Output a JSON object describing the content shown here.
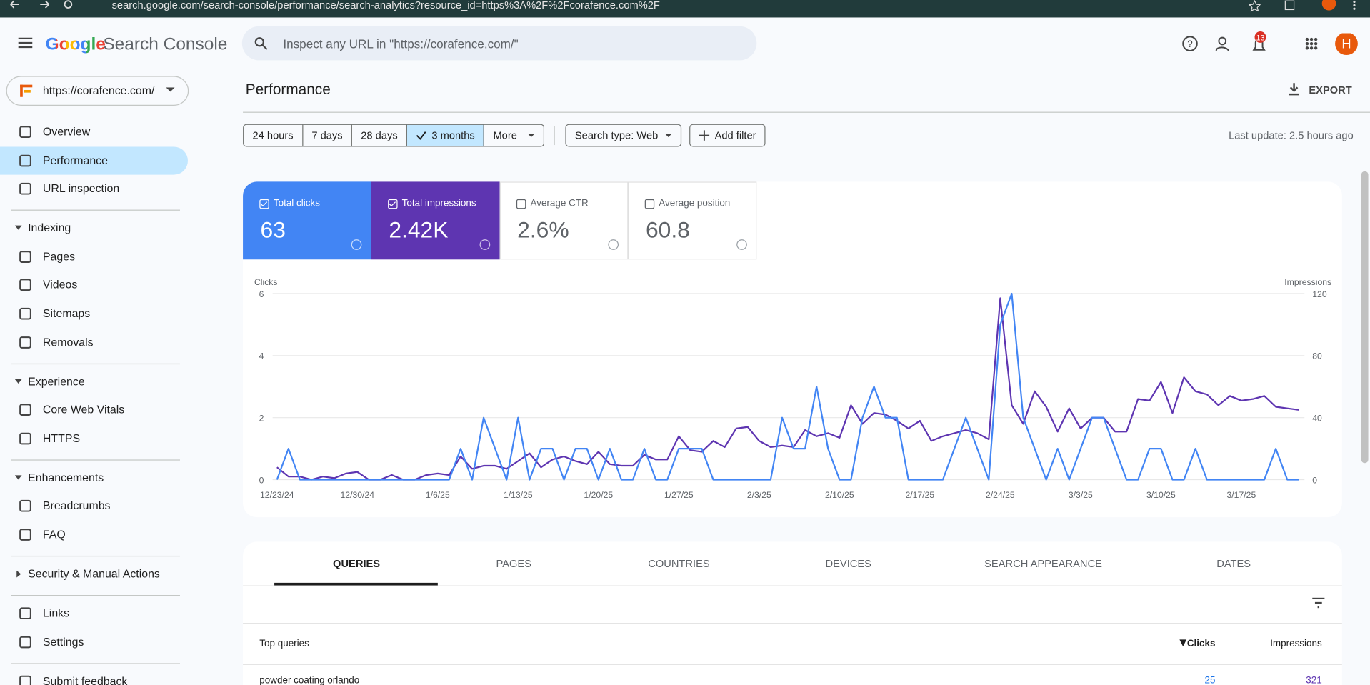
{
  "browser": {
    "url": "search.google.com/search-console/performance/search-analytics?resource_id=https%3A%2F%2Fcorafence.com%2F"
  },
  "header": {
    "logo": "Google",
    "product": "Search Console",
    "search_placeholder": "Inspect any URL in \"https://corafence.com/\"",
    "notifications": "13",
    "avatar": "H"
  },
  "sidebar": {
    "property": "https://corafence.com/",
    "top": [
      "Overview",
      "Performance",
      "URL inspection"
    ],
    "sections": [
      {
        "title": "Indexing",
        "items": [
          "Pages",
          "Videos",
          "Sitemaps",
          "Removals"
        ]
      },
      {
        "title": "Experience",
        "items": [
          "Core Web Vitals",
          "HTTPS"
        ]
      },
      {
        "title": "Enhancements",
        "items": [
          "Breadcrumbs",
          "FAQ"
        ]
      },
      {
        "title": "Security & Manual Actions",
        "items": []
      }
    ],
    "bottom": [
      "Links",
      "Settings"
    ],
    "feedback": "Submit feedback"
  },
  "main": {
    "title": "Performance",
    "export": "EXPORT",
    "date_filters": [
      "24 hours",
      "7 days",
      "28 days",
      "3 months",
      "More"
    ],
    "search_type": "Search type: Web",
    "add_filter": "Add filter",
    "last_update": "Last update: 2.5 hours ago",
    "metrics": [
      {
        "label": "Total clicks",
        "value": "63"
      },
      {
        "label": "Total impressions",
        "value": "2.42K"
      },
      {
        "label": "Average CTR",
        "value": "2.6%"
      },
      {
        "label": "Average position",
        "value": "60.8"
      }
    ]
  },
  "chart_data": {
    "type": "line",
    "ylabel": "Clicks",
    "y2label": "Impressions",
    "ylim": [
      0,
      6
    ],
    "yticks": [
      0,
      2,
      4,
      6
    ],
    "y2lim": [
      0,
      120
    ],
    "y2ticks": [
      0,
      40,
      80,
      120
    ],
    "grid": true,
    "categories": [
      "12/23/24",
      null,
      null,
      null,
      null,
      null,
      null,
      "12/30/24",
      null,
      null,
      null,
      null,
      null,
      null,
      "1/6/25",
      null,
      null,
      null,
      null,
      null,
      null,
      "1/13/25",
      null,
      null,
      null,
      null,
      null,
      null,
      "1/20/25",
      null,
      null,
      null,
      null,
      null,
      null,
      "1/27/25",
      null,
      null,
      null,
      null,
      null,
      null,
      "2/3/25",
      null,
      null,
      null,
      null,
      null,
      null,
      "2/10/25",
      null,
      null,
      null,
      null,
      null,
      null,
      "2/17/25",
      null,
      null,
      null,
      null,
      null,
      null,
      "2/24/25",
      null,
      null,
      null,
      null,
      null,
      null,
      "3/3/25",
      null,
      null,
      null,
      null,
      null,
      null,
      "3/10/25",
      null,
      null,
      null,
      null,
      null,
      null,
      "3/17/25",
      null,
      null,
      null,
      null,
      null
    ],
    "series": [
      {
        "color": "#4285f4",
        "values": [
          0,
          1,
          0,
          0,
          0,
          0,
          0,
          0,
          0,
          0,
          0,
          0,
          0,
          0,
          0,
          0,
          1,
          0,
          2,
          1,
          0,
          2,
          0,
          1,
          1,
          0,
          1,
          1,
          0,
          1,
          0,
          0,
          1,
          0,
          0,
          1,
          1,
          1,
          0,
          0,
          0,
          0,
          0,
          0,
          2,
          1,
          1,
          3,
          1,
          0,
          0,
          2,
          3,
          2,
          2,
          0,
          0,
          0,
          0,
          1,
          2,
          1,
          0,
          5,
          6,
          2,
          1,
          0,
          1,
          0,
          1,
          2,
          2,
          1,
          0,
          0,
          1,
          1,
          0,
          0,
          1,
          0,
          0,
          0,
          0,
          0,
          0,
          1,
          0,
          0
        ]
      },
      {
        "color": "#5e35b1",
        "axis": "y2",
        "values": [
          8,
          2,
          2,
          0,
          2,
          1,
          4,
          5,
          0,
          0,
          3,
          0,
          0,
          3,
          4,
          3,
          15,
          7,
          9,
          9,
          7,
          12,
          17,
          8,
          13,
          15,
          12,
          10,
          18,
          10,
          9,
          9,
          16,
          13,
          13,
          28,
          19,
          18,
          25,
          21,
          33,
          34,
          25,
          21,
          22,
          21,
          32,
          28,
          30,
          27,
          48,
          36,
          43,
          42,
          38,
          33,
          38,
          25,
          28,
          30,
          32,
          30,
          26,
          117,
          48,
          36,
          57,
          47,
          31,
          46,
          33,
          40,
          40,
          31,
          31,
          52,
          51,
          63,
          43,
          66,
          57,
          55,
          48,
          54,
          51,
          52,
          54,
          47,
          46,
          45
        ]
      }
    ]
  },
  "tabs": [
    "QUERIES",
    "PAGES",
    "COUNTRIES",
    "DEVICES",
    "SEARCH APPEARANCE",
    "DATES"
  ],
  "table": {
    "headers": [
      "Top queries",
      "Clicks",
      "Impressions"
    ],
    "rows": [
      [
        "powder coating orlando",
        "25",
        "321"
      ]
    ]
  }
}
